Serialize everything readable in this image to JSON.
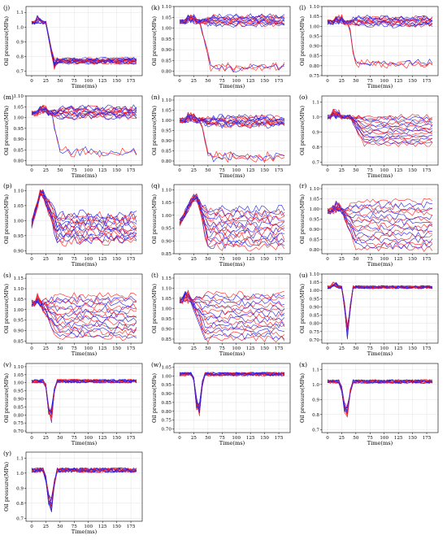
{
  "palette": {
    "red": "#ff2020",
    "blue": "#2020ee"
  },
  "chart_data": [
    {
      "type": "line",
      "label": "(j)",
      "xlabel": "Time(ms)",
      "ylabel": "Oil pressure(MPa)",
      "xlim": [
        -10,
        195
      ],
      "ylim": [
        0.67,
        1.14
      ],
      "grid": true,
      "xticks": [
        0,
        25,
        50,
        75,
        100,
        125,
        150,
        175
      ],
      "yticks": [
        0.7,
        0.8,
        0.9,
        1.0,
        1.1
      ],
      "ytick_labels": [
        "0.7",
        "0.8",
        "0.9",
        "1.0",
        "1.1"
      ],
      "pattern": "drop",
      "base": 1.03,
      "level": 0.77,
      "spread": 0.045,
      "noise": 0.012,
      "fall_start": 25,
      "fall_end": 38,
      "n_red": 9,
      "n_blue": 9
    },
    {
      "type": "line",
      "label": "(k)",
      "xlabel": "Time(ms)",
      "ylabel": "Oil pressure(MPa)",
      "xlim": [
        -10,
        195
      ],
      "ylim": [
        0.78,
        1.1
      ],
      "grid": true,
      "xticks": [
        0,
        25,
        50,
        75,
        100,
        125,
        150,
        175
      ],
      "yticks": [
        0.8,
        0.85,
        0.9,
        0.95,
        1.0,
        1.05,
        1.1
      ],
      "ytick_labels": [
        "0.80",
        "0.85",
        "0.90",
        "0.95",
        "1.00",
        "1.05",
        "1.10"
      ],
      "pattern": "split",
      "base": 1.03,
      "main": 1.03,
      "low": 0.82,
      "n_low": 3,
      "noise": 0.012,
      "fall_start": 35,
      "fall_end": 55,
      "n_red": 8,
      "n_blue": 8
    },
    {
      "type": "line",
      "label": "(l)",
      "xlabel": "Time(ms)",
      "ylabel": "Oil pressure(MPa)",
      "xlim": [
        -10,
        195
      ],
      "ylim": [
        0.75,
        1.1
      ],
      "grid": true,
      "xticks": [
        0,
        25,
        50,
        75,
        100,
        125,
        150,
        175
      ],
      "yticks": [
        0.75,
        0.8,
        0.85,
        0.9,
        0.95,
        1.0,
        1.05,
        1.1
      ],
      "ytick_labels": [
        "0.75",
        "0.80",
        "0.85",
        "0.90",
        "0.95",
        "1.00",
        "1.05",
        "1.10"
      ],
      "pattern": "split",
      "base": 1.02,
      "main": 1.02,
      "low": 0.81,
      "n_low": 3,
      "noise": 0.013,
      "fall_start": 38,
      "fall_end": 48,
      "n_red": 8,
      "n_blue": 8
    },
    {
      "type": "line",
      "label": "(m)",
      "xlabel": "Time(ms)",
      "ylabel": "Oil pressure(MPa)",
      "xlim": [
        -10,
        195
      ],
      "ylim": [
        0.78,
        1.1
      ],
      "grid": true,
      "xticks": [
        0,
        25,
        50,
        75,
        100,
        125,
        150,
        175
      ],
      "yticks": [
        0.8,
        0.85,
        0.9,
        0.95,
        1.0,
        1.05,
        1.1
      ],
      "ytick_labels": [
        "0.80",
        "0.85",
        "0.90",
        "0.95",
        "1.00",
        "1.05",
        "1.10"
      ],
      "pattern": "split",
      "base": 1.02,
      "main": 1.02,
      "low": 0.84,
      "n_low": 2,
      "noise": 0.014,
      "fall_start": 35,
      "fall_end": 50,
      "n_red": 8,
      "n_blue": 8
    },
    {
      "type": "line",
      "label": "(n)",
      "xlabel": "Time(ms)",
      "ylabel": "Oil pressure(MPa)",
      "xlim": [
        -10,
        195
      ],
      "ylim": [
        0.78,
        1.12
      ],
      "grid": true,
      "xticks": [
        0,
        25,
        50,
        75,
        100,
        125,
        150,
        175
      ],
      "yticks": [
        0.8,
        0.85,
        0.9,
        0.95,
        1.0,
        1.05,
        1.1
      ],
      "ytick_labels": [
        "0.80",
        "0.85",
        "0.90",
        "0.95",
        "1.00",
        "1.05",
        "1.10"
      ],
      "pattern": "split",
      "base": 1.0,
      "main": 0.99,
      "low": 0.82,
      "n_low": 3,
      "noise": 0.015,
      "fall_start": 38,
      "fall_end": 50,
      "n_red": 8,
      "n_blue": 8
    },
    {
      "type": "line",
      "label": "(o)",
      "xlabel": "Time(ms)",
      "ylabel": "Oil pressure(MPa)",
      "xlim": [
        -10,
        195
      ],
      "ylim": [
        0.68,
        1.14
      ],
      "grid": true,
      "xticks": [
        0,
        25,
        50,
        75,
        100,
        125,
        150,
        175
      ],
      "yticks": [
        0.7,
        0.8,
        0.9,
        1.0,
        1.1
      ],
      "ytick_labels": [
        "0.7",
        "0.8",
        "0.9",
        "1.0",
        "1.1"
      ],
      "pattern": "fan",
      "base": 1.0,
      "center": 0.91,
      "spread": 0.19,
      "noise": 0.015,
      "fall_start": 40,
      "fall_end": 65,
      "n_red": 9,
      "n_blue": 8
    },
    {
      "type": "line",
      "label": "(p)",
      "xlabel": "Time(ms)",
      "ylabel": "Oil pressure(MPa)",
      "xlim": [
        -10,
        195
      ],
      "ylim": [
        0.89,
        1.12
      ],
      "grid": true,
      "xticks": [
        0,
        25,
        50,
        75,
        100,
        125,
        150,
        175
      ],
      "yticks": [
        0.9,
        0.95,
        1.0,
        1.05,
        1.1
      ],
      "ytick_labels": [
        "0.90",
        "0.95",
        "1.00",
        "1.05",
        "1.10"
      ],
      "pattern": "peakband",
      "base": 1.02,
      "peak": 1.09,
      "peak_t": 15,
      "center": 0.975,
      "spread": 0.09,
      "noise": 0.016,
      "fall_start": 20,
      "fall_end": 45,
      "n_red": 8,
      "n_blue": 8
    },
    {
      "type": "line",
      "label": "(q)",
      "xlabel": "Time(ms)",
      "ylabel": "Oil pressure(MPa)",
      "xlim": [
        -10,
        195
      ],
      "ylim": [
        0.85,
        1.12
      ],
      "grid": true,
      "xticks": [
        0,
        25,
        50,
        75,
        100,
        125,
        150,
        175
      ],
      "yticks": [
        0.85,
        0.9,
        0.95,
        1.0,
        1.05,
        1.1
      ],
      "ytick_labels": [
        "0.85",
        "0.90",
        "0.95",
        "1.00",
        "1.05",
        "1.10"
      ],
      "pattern": "peakband",
      "base": 1.0,
      "peak": 1.07,
      "peak_t": 25,
      "center": 0.95,
      "spread": 0.15,
      "noise": 0.016,
      "fall_start": 30,
      "fall_end": 50,
      "n_red": 8,
      "n_blue": 8
    },
    {
      "type": "line",
      "label": "(r)",
      "xlabel": "Time(ms)",
      "ylabel": "Oil pressure(MPa)",
      "xlim": [
        -10,
        195
      ],
      "ylim": [
        0.78,
        1.12
      ],
      "grid": true,
      "xticks": [
        0,
        25,
        50,
        75,
        100,
        125,
        150,
        175
      ],
      "yticks": [
        0.8,
        0.85,
        0.9,
        0.95,
        1.0,
        1.05,
        1.1
      ],
      "ytick_labels": [
        "0.80",
        "0.85",
        "0.90",
        "0.95",
        "1.00",
        "1.05",
        "1.10"
      ],
      "pattern": "fan",
      "base": 0.99,
      "center": 0.92,
      "spread": 0.23,
      "noise": 0.016,
      "fall_start": 25,
      "fall_end": 50,
      "n_red": 9,
      "n_blue": 8
    },
    {
      "type": "line",
      "label": "(s)",
      "xlabel": "Time(ms)",
      "ylabel": "Oil pressure(MPa)",
      "xlim": [
        -10,
        195
      ],
      "ylim": [
        0.84,
        1.17
      ],
      "grid": true,
      "xticks": [
        0,
        25,
        50,
        75,
        100,
        125,
        150,
        175
      ],
      "yticks": [
        0.85,
        0.9,
        0.95,
        1.0,
        1.05,
        1.1,
        1.15
      ],
      "ytick_labels": [
        "0.85",
        "0.90",
        "0.95",
        "1.00",
        "1.05",
        "1.10",
        "1.15"
      ],
      "pattern": "fan",
      "base": 1.03,
      "center": 0.965,
      "spread": 0.2,
      "noise": 0.017,
      "fall_start": 15,
      "fall_end": 45,
      "n_red": 9,
      "n_blue": 8
    },
    {
      "type": "line",
      "label": "(t)",
      "xlabel": "Time(ms)",
      "ylabel": "Oil pressure(MPa)",
      "xlim": [
        -10,
        195
      ],
      "ylim": [
        0.83,
        1.17
      ],
      "grid": true,
      "xticks": [
        0,
        25,
        50,
        75,
        100,
        125,
        150,
        175
      ],
      "yticks": [
        0.85,
        0.9,
        0.95,
        1.0,
        1.05,
        1.1,
        1.15
      ],
      "ytick_labels": [
        "0.85",
        "0.90",
        "0.95",
        "1.00",
        "1.05",
        "1.10",
        "1.15"
      ],
      "pattern": "fan",
      "base": 1.04,
      "center": 0.96,
      "spread": 0.22,
      "noise": 0.017,
      "fall_start": 20,
      "fall_end": 45,
      "n_red": 9,
      "n_blue": 8
    },
    {
      "type": "line",
      "label": "(u)",
      "xlabel": "Time(ms)",
      "ylabel": "Oil pressure(MPa)",
      "xlim": [
        -10,
        195
      ],
      "ylim": [
        0.68,
        1.1
      ],
      "grid": true,
      "xticks": [
        0,
        25,
        50,
        75,
        100,
        125,
        150,
        175
      ],
      "yticks": [
        0.7,
        0.75,
        0.8,
        0.85,
        0.9,
        0.95,
        1.0,
        1.05,
        1.1
      ],
      "ytick_labels": [
        "0.70",
        "0.75",
        "0.80",
        "0.85",
        "0.90",
        "0.95",
        "1.00",
        "1.05",
        "1.10"
      ],
      "pattern": "dip",
      "base": 1.02,
      "dip_t": 35,
      "dip_min": 0.75,
      "dip_width": 9,
      "noise": 0.01,
      "n_red": 8,
      "n_blue": 8
    },
    {
      "type": "line",
      "label": "(v)",
      "xlabel": "Time(ms)",
      "ylabel": "Oil pressure(MPa)",
      "xlim": [
        -10,
        195
      ],
      "ylim": [
        0.69,
        1.12
      ],
      "grid": true,
      "xticks": [
        0,
        25,
        50,
        75,
        100,
        125,
        150,
        175
      ],
      "yticks": [
        0.7,
        0.75,
        0.8,
        0.85,
        0.9,
        0.95,
        1.0,
        1.05,
        1.1
      ],
      "ytick_labels": [
        "0.70",
        "0.75",
        "0.80",
        "0.85",
        "0.90",
        "0.95",
        "1.00",
        "1.05",
        "1.10"
      ],
      "pattern": "dip",
      "base": 1.01,
      "dip_t": 33,
      "dip_min": 0.74,
      "dip_width": 9,
      "noise": 0.012,
      "n_red": 8,
      "n_blue": 8
    },
    {
      "type": "line",
      "label": "(w)",
      "xlabel": "Time(ms)",
      "ylabel": "Oil pressure(MPa)",
      "xlim": [
        -10,
        195
      ],
      "ylim": [
        0.68,
        1.07
      ],
      "grid": true,
      "xticks": [
        0,
        25,
        50,
        75,
        100,
        125,
        150,
        175
      ],
      "yticks": [
        0.7,
        0.75,
        0.8,
        0.85,
        0.9,
        0.95,
        1.0,
        1.05
      ],
      "ytick_labels": [
        "0.70",
        "0.75",
        "0.80",
        "0.85",
        "0.90",
        "0.95",
        "1.00",
        "1.05"
      ],
      "pattern": "dip",
      "base": 1.01,
      "dip_t": 33,
      "dip_min": 0.76,
      "dip_width": 9,
      "noise": 0.011,
      "n_red": 8,
      "n_blue": 8
    },
    {
      "type": "line",
      "label": "(x)",
      "xlabel": "Time(ms)",
      "ylabel": "Oil pressure(MPa)",
      "xlim": [
        -10,
        195
      ],
      "ylim": [
        0.68,
        1.14
      ],
      "grid": true,
      "xticks": [
        0,
        25,
        50,
        75,
        100,
        125,
        150,
        175
      ],
      "yticks": [
        0.7,
        0.8,
        0.9,
        1.0,
        1.1
      ],
      "ytick_labels": [
        "0.7",
        "0.8",
        "0.9",
        "1.0",
        "1.1"
      ],
      "pattern": "dip",
      "base": 1.02,
      "dip_t": 33,
      "dip_min": 0.77,
      "dip_width": 10,
      "noise": 0.013,
      "n_red": 8,
      "n_blue": 8
    },
    {
      "type": "line",
      "label": "(y)",
      "xlabel": "Time(ms)",
      "ylabel": "Oil pressure(MPa)",
      "xlim": [
        -10,
        195
      ],
      "ylim": [
        0.68,
        1.14
      ],
      "grid": true,
      "xticks": [
        0,
        25,
        50,
        75,
        100,
        125,
        150,
        175
      ],
      "yticks": [
        0.7,
        0.8,
        0.9,
        1.0,
        1.1
      ],
      "ytick_labels": [
        "0.7",
        "0.8",
        "0.9",
        "1.0",
        "1.1"
      ],
      "pattern": "dip",
      "base": 1.02,
      "dip_t": 33,
      "dip_min": 0.73,
      "dip_width": 10,
      "noise": 0.016,
      "n_red": 8,
      "n_blue": 8
    }
  ]
}
